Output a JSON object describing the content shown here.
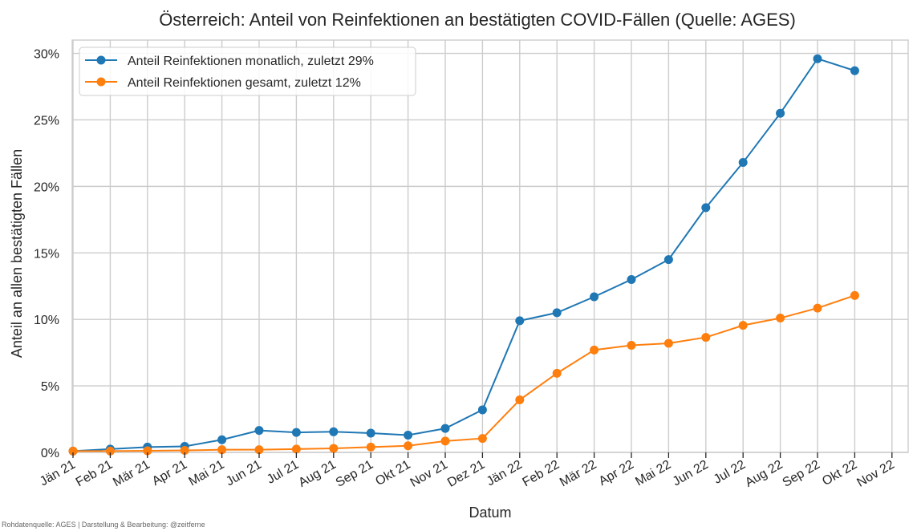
{
  "chart_data": {
    "type": "line",
    "title": "Österreich: Anteil von Reinfektionen an bestätigten COVID-Fällen (Quelle: AGES)",
    "xlabel": "Datum",
    "ylabel": "Anteil an allen bestätigten Fällen",
    "categories": [
      "Jän 21",
      "Feb 21",
      "Mär 21",
      "Apr 21",
      "Mai 21",
      "Jun 21",
      "Jul 21",
      "Aug 21",
      "Sep 21",
      "Okt 21",
      "Nov 21",
      "Dez 21",
      "Jän 22",
      "Feb 22",
      "Mär 22",
      "Apr 22",
      "Mai 22",
      "Jun 22",
      "Jul 22",
      "Aug 22",
      "Sep 22",
      "Okt 22",
      "Nov 22"
    ],
    "yticks": [
      "0%",
      "5%",
      "10%",
      "15%",
      "20%",
      "25%",
      "30%"
    ],
    "ytick_values": [
      0,
      5,
      10,
      15,
      20,
      25,
      30
    ],
    "ylim": [
      0,
      31
    ],
    "grid": true,
    "legend_position": "top-left",
    "series": [
      {
        "name": "Anteil Reinfektionen monatlich, zuletzt 29%",
        "color": "#1f77b4",
        "x": [
          "2021-01-01",
          "2021-02-01",
          "2021-03-01",
          "2021-04-01",
          "2021-05-01",
          "2021-06-01",
          "2021-07-01",
          "2021-08-01",
          "2021-09-01",
          "2021-10-01",
          "2021-11-01",
          "2021-12-01",
          "2022-01-01",
          "2022-02-01",
          "2022-03-01",
          "2022-04-01",
          "2022-05-01",
          "2022-06-01",
          "2022-07-01",
          "2022-08-01",
          "2022-09-01",
          "2022-10-01"
        ],
        "values": [
          0.1,
          0.25,
          0.4,
          0.45,
          0.95,
          1.65,
          1.5,
          1.55,
          1.45,
          1.3,
          1.8,
          3.2,
          9.9,
          10.5,
          11.7,
          13.0,
          14.5,
          18.4,
          21.8,
          25.5,
          29.6,
          28.7
        ]
      },
      {
        "name": "Anteil Reinfektionen gesamt, zuletzt 12%",
        "color": "#ff7f0e",
        "x": [
          "2021-01-01",
          "2021-02-01",
          "2021-03-01",
          "2021-04-01",
          "2021-05-01",
          "2021-06-01",
          "2021-07-01",
          "2021-08-01",
          "2021-09-01",
          "2021-10-01",
          "2021-11-01",
          "2021-12-01",
          "2022-01-01",
          "2022-02-01",
          "2022-03-01",
          "2022-04-01",
          "2022-05-01",
          "2022-06-01",
          "2022-07-01",
          "2022-08-01",
          "2022-09-01",
          "2022-10-01"
        ],
        "values": [
          0.1,
          0.1,
          0.12,
          0.15,
          0.2,
          0.2,
          0.25,
          0.3,
          0.4,
          0.5,
          0.85,
          1.05,
          3.95,
          5.95,
          7.7,
          8.05,
          8.2,
          8.65,
          9.55,
          10.1,
          10.85,
          11.8
        ]
      }
    ]
  },
  "footer": "Rohdatenquelle: AGES | Darstellung & Bearbeitung: @zeitferne"
}
